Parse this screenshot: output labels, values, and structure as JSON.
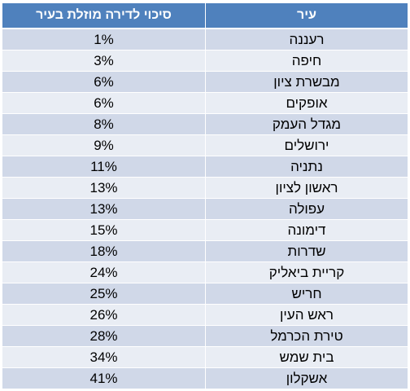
{
  "table": {
    "headers": {
      "city": "עיר",
      "risk": "סיכוי לדירה מוזלת בעיר"
    },
    "rows": [
      {
        "city": "רעננה",
        "risk": "1%"
      },
      {
        "city": "חיפה",
        "risk": "3%"
      },
      {
        "city": "מבשרת ציון",
        "risk": "6%"
      },
      {
        "city": "אופקים",
        "risk": "6%"
      },
      {
        "city": "מגדל העמק",
        "risk": "8%"
      },
      {
        "city": "ירושלים",
        "risk": "9%"
      },
      {
        "city": "נתניה",
        "risk": "11%"
      },
      {
        "city": "ראשון לציון",
        "risk": "13%"
      },
      {
        "city": "עפולה",
        "risk": "13%"
      },
      {
        "city": "דימונה",
        "risk": "15%"
      },
      {
        "city": "שדרות",
        "risk": "18%"
      },
      {
        "city": "קריית ביאליק",
        "risk": "24%"
      },
      {
        "city": "חריש",
        "risk": "25%"
      },
      {
        "city": "ראש העין",
        "risk": "26%"
      },
      {
        "city": "טירת הכרמל",
        "risk": "28%"
      },
      {
        "city": "בית שמש",
        "risk": "34%"
      },
      {
        "city": "אשקלון",
        "risk": "41%"
      }
    ]
  },
  "colors": {
    "header_bg": "#4f81bd",
    "row_band_dark": "#d0d8e8",
    "row_band_light": "#e9edf4"
  }
}
